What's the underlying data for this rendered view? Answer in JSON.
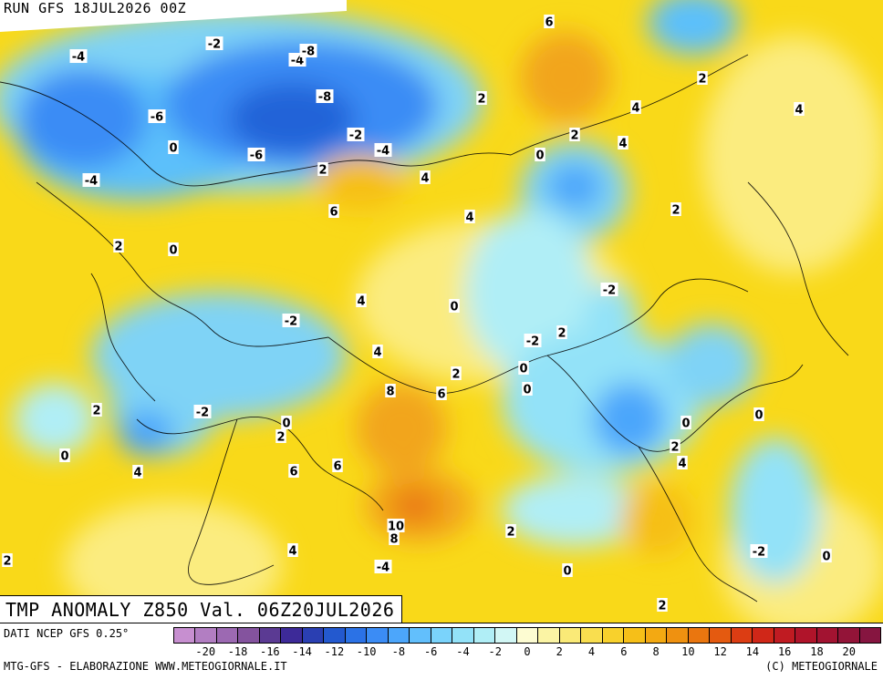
{
  "header": {
    "run_title": "RUN GFS 18JUL2026 00Z"
  },
  "map": {
    "title": "TMP ANOMALY Z850 Val. 06Z20JUL2026",
    "contour_labels": [
      "-4",
      "-2",
      "-6",
      "-4",
      "-8",
      "-2",
      "-6",
      "-8",
      "-4",
      "0",
      "-4",
      "2",
      "6",
      "6",
      "2",
      "4",
      "2",
      "4",
      "0",
      "-2",
      "4",
      "0",
      "2",
      "4",
      "2",
      "0",
      "-2",
      "-2",
      "8",
      "6",
      "2",
      "0",
      "2",
      "0",
      "2",
      "0",
      "4",
      "6",
      "6",
      "10",
      "8",
      "0",
      "-2",
      "2",
      "4",
      "0",
      "-2",
      "2",
      "0",
      "2",
      "2",
      "2",
      "4",
      "4",
      "4",
      "0",
      "2",
      "4",
      "0",
      "-4"
    ],
    "palette": [
      "#c78fd0",
      "#b27ec2",
      "#9c69b2",
      "#84539e",
      "#5b3a93",
      "#3d2a98",
      "#2a3fb2",
      "#2359cf",
      "#2b72e6",
      "#3b8cf5",
      "#4ca6fb",
      "#62bffc",
      "#7ad3fb",
      "#93e2f8",
      "#b0eef6",
      "#d2f7f5",
      "#fdfcd2",
      "#fbf4a4",
      "#faea77",
      "#f9de4f",
      "#f8d12c",
      "#f6bf18",
      "#f3a912",
      "#ef9110",
      "#ea760f",
      "#e45a10",
      "#dc3d13",
      "#d02718",
      "#c01b22",
      "#b0142a",
      "#a21331",
      "#931438",
      "#861540"
    ],
    "colors": {
      "warm_base": "#f9d919",
      "warm_light": "#fbec7f",
      "orange": "#f2a51d",
      "cold": "#7fd3f6",
      "cold_deep": "#2463d8"
    }
  },
  "legend": {
    "data_source": "DATI NCEP GFS 0.25°",
    "ticks": [
      "-20",
      "-18",
      "-16",
      "-14",
      "-12",
      "-10",
      "-8",
      "-6",
      "-4",
      "-2",
      "0",
      "2",
      "4",
      "6",
      "8",
      "10",
      "12",
      "14",
      "16",
      "18",
      "20"
    ]
  },
  "footer": {
    "credit": "MTG-GFS - ELABORAZIONE WWW.METEOGIORNALE.IT",
    "copyright": "(C) METEOGIORNALE"
  }
}
